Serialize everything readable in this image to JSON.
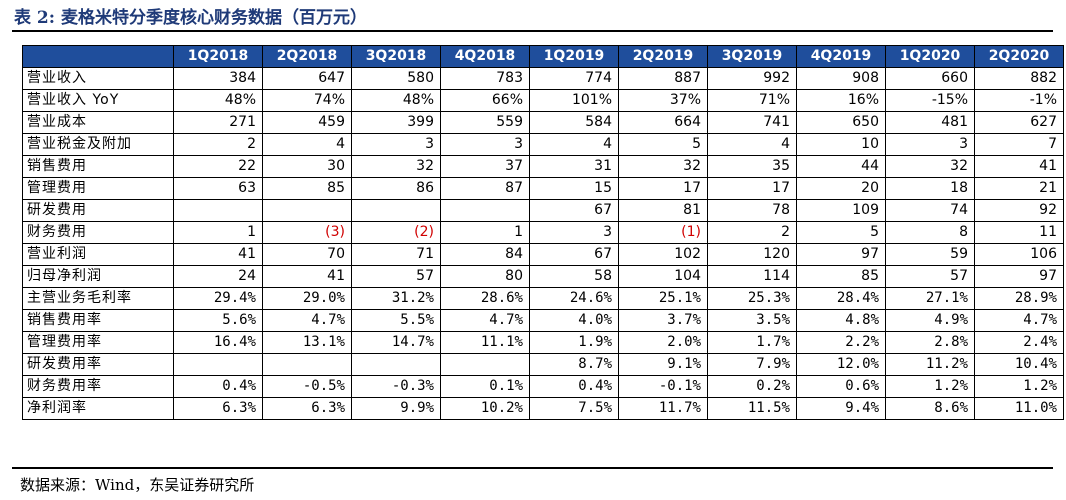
{
  "title": "表 2:  麦格米特分季度核心财务数据（百万元）",
  "source": "数据来源：Wind，东吴证券研究所",
  "table": {
    "columns": [
      "1Q2018",
      "2Q2018",
      "3Q2018",
      "4Q2018",
      "1Q2019",
      "2Q2019",
      "3Q2019",
      "4Q2019",
      "1Q2020",
      "2Q2020"
    ],
    "rows": [
      {
        "label": "营业收入",
        "values": [
          "384",
          "647",
          "580",
          "783",
          "774",
          "887",
          "992",
          "908",
          "660",
          "882"
        ]
      },
      {
        "label": "营业收入 YoY",
        "values": [
          "48%",
          "74%",
          "48%",
          "66%",
          "101%",
          "37%",
          "71%",
          "16%",
          "-15%",
          "-1%"
        ]
      },
      {
        "label": "营业成本",
        "values": [
          "271",
          "459",
          "399",
          "559",
          "584",
          "664",
          "741",
          "650",
          "481",
          "627"
        ]
      },
      {
        "label": "营业税金及附加",
        "values": [
          "2",
          "4",
          "3",
          "3",
          "4",
          "5",
          "4",
          "10",
          "3",
          "7"
        ]
      },
      {
        "label": "销售费用",
        "values": [
          "22",
          "30",
          "32",
          "37",
          "31",
          "32",
          "35",
          "44",
          "32",
          "41"
        ]
      },
      {
        "label": "管理费用",
        "values": [
          "63",
          "85",
          "86",
          "87",
          "15",
          "17",
          "17",
          "20",
          "18",
          "21"
        ]
      },
      {
        "label": "研发费用",
        "values": [
          "",
          "",
          "",
          "",
          "67",
          "81",
          "78",
          "109",
          "74",
          "92"
        ]
      },
      {
        "label": "财务费用",
        "values": [
          "1",
          "(3)",
          "(2)",
          "1",
          "3",
          "(1)",
          "2",
          "5",
          "8",
          "11"
        ]
      },
      {
        "label": "营业利润",
        "values": [
          "41",
          "70",
          "71",
          "84",
          "67",
          "102",
          "120",
          "97",
          "59",
          "106"
        ]
      },
      {
        "label": "归母净利润",
        "values": [
          "24",
          "41",
          "57",
          "80",
          "58",
          "104",
          "114",
          "85",
          "57",
          "97"
        ]
      },
      {
        "label": "主营业务毛利率",
        "values": [
          "29.4%",
          "29.0%",
          "31.2%",
          "28.6%",
          "24.6%",
          "25.1%",
          "25.3%",
          "28.4%",
          "27.1%",
          "28.9%"
        ]
      },
      {
        "label": "销售费用率",
        "values": [
          "5.6%",
          "4.7%",
          "5.5%",
          "4.7%",
          "4.0%",
          "3.7%",
          "3.5%",
          "4.8%",
          "4.9%",
          "4.7%"
        ]
      },
      {
        "label": "管理费用率",
        "values": [
          "16.4%",
          "13.1%",
          "14.7%",
          "11.1%",
          "1.9%",
          "2.0%",
          "1.7%",
          "2.2%",
          "2.8%",
          "2.4%"
        ]
      },
      {
        "label": "研发费用率",
        "values": [
          "",
          "",
          "",
          "",
          "8.7%",
          "9.1%",
          "7.9%",
          "12.0%",
          "11.2%",
          "10.4%"
        ]
      },
      {
        "label": "财务费用率",
        "values": [
          "0.4%",
          "-0.5%",
          "-0.3%",
          "0.1%",
          "0.4%",
          "-0.1%",
          "0.2%",
          "0.6%",
          "1.2%",
          "1.2%"
        ]
      },
      {
        "label": "净利润率",
        "values": [
          "6.3%",
          "6.3%",
          "9.9%",
          "10.2%",
          "7.5%",
          "11.7%",
          "11.5%",
          "9.4%",
          "8.6%",
          "11.0%"
        ]
      }
    ]
  },
  "colors": {
    "header_bg": "#1f4e9c",
    "header_text": "#ffffff",
    "title_text": "#1f3a78",
    "negative_text": "#d00000"
  }
}
